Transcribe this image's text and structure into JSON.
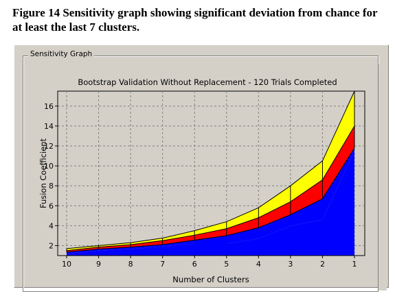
{
  "caption": "Figure 14 Sensitivity graph showing significant deviation from chance for at least the last 7 clusters.",
  "groupbox_label": "Sensitivity Graph",
  "colors": {
    "window": "#d4d0c8",
    "upper_band": "#ffff00",
    "middle_band": "#ff0000",
    "lower_band": "#0000ff",
    "plot_background": "#d4d0c8",
    "grid": "#808080"
  },
  "chart_data": {
    "type": "area",
    "title": "Bootstrap Validation Without Replacement - 120 Trials Completed",
    "xlabel": "Number of Clusters",
    "ylabel": "Fusion Coefficient",
    "x": [
      10,
      9,
      8,
      7,
      6,
      5,
      4,
      3,
      2,
      1
    ],
    "x_ticks": [
      "10",
      "9",
      "8",
      "7",
      "6",
      "5",
      "4",
      "3",
      "2",
      "1"
    ],
    "y_ticks": [
      "2",
      "4",
      "6",
      "8",
      "10",
      "12",
      "14",
      "16"
    ],
    "ylim": [
      1,
      17.5
    ],
    "grid": true,
    "series": [
      {
        "values": [
          1.7,
          2.0,
          2.3,
          2.75,
          3.5,
          4.4,
          5.8,
          8.0,
          10.5,
          17.5
        ]
      },
      {
        "values": [
          1.5,
          1.85,
          2.1,
          2.5,
          3.05,
          3.7,
          4.8,
          6.4,
          8.6,
          14.0
        ]
      },
      {
        "values": [
          1.35,
          1.65,
          1.85,
          2.1,
          2.55,
          3.0,
          3.8,
          5.1,
          6.7,
          11.8
        ]
      },
      {
        "values": [
          1.2,
          1.5,
          1.65,
          1.9,
          2.2,
          2.2,
          2.7,
          4.0,
          4.6,
          11.5
        ]
      }
    ]
  }
}
